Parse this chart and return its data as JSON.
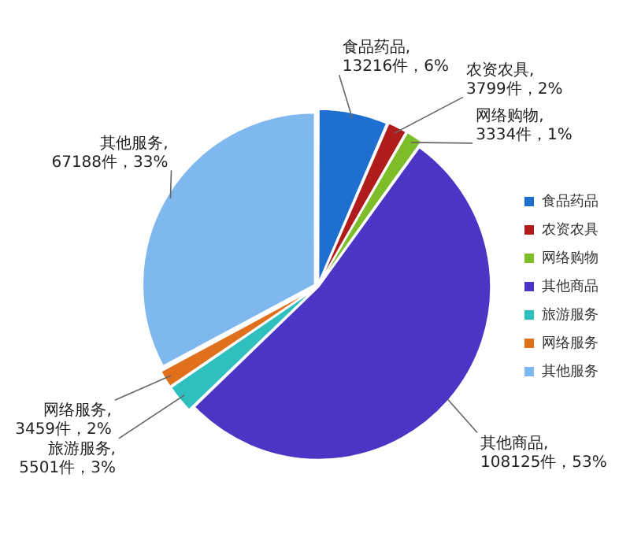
{
  "chart_data": {
    "type": "pie",
    "categories": [
      "食品药品",
      "农资农具",
      "网络购物",
      "其他商品",
      "旅游服务",
      "网络服务",
      "其他服务"
    ],
    "values": [
      13216,
      3799,
      3334,
      108125,
      5501,
      3459,
      67188
    ],
    "colors": [
      "#1f6fd1",
      "#b01c1c",
      "#7dbd2a",
      "#4b35c4",
      "#2fbfbf",
      "#e0701c",
      "#7fb8ee"
    ],
    "value_labels": [
      "食品药品,\n13216件，6%",
      "农资农具,\n3799件，2%",
      "网络购物,\n3334件，1%",
      "其他商品,\n108125件，53%",
      "旅游服务,\n5501件，3%",
      "网络服务,\n3459件，2%",
      "其他服务,\n67188件，33%"
    ],
    "legend": "right"
  }
}
